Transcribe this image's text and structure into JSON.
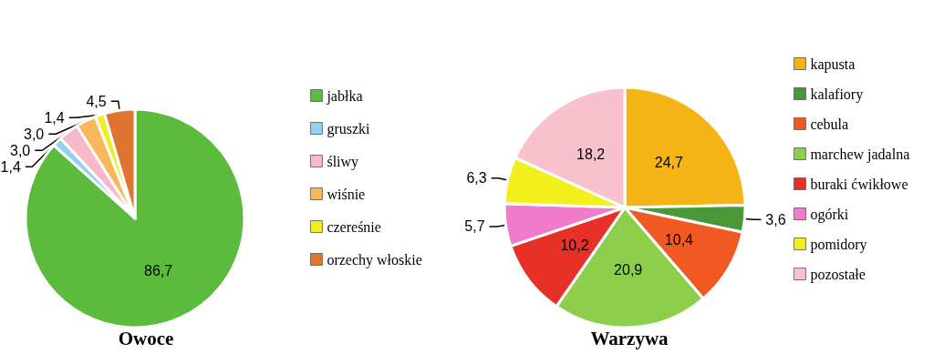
{
  "chart_data": [
    {
      "type": "pie",
      "title": "Owoce",
      "categories": [
        "jabłka",
        "gruszki",
        "śliwy",
        "wiśnie",
        "czereśnie",
        "orzechy włoskie"
      ],
      "values": [
        86.7,
        1.4,
        3.0,
        3.0,
        1.4,
        4.5
      ],
      "colors": [
        "#5cbb3c",
        "#92d2ee",
        "#f7b9c9",
        "#f8b75a",
        "#eeee22",
        "#e07530"
      ],
      "value_labels": [
        "86,7",
        "1,4",
        "3,0",
        "3,0",
        "1,4",
        "4,5"
      ],
      "legend": "right"
    },
    {
      "type": "pie",
      "title": "Warzywa",
      "categories": [
        "kapusta",
        "kalafiory",
        "cebula",
        "marchew jadalna",
        "buraki ćwikłowe",
        "ogórki",
        "pomidory",
        "pozostałe"
      ],
      "values": [
        24.7,
        3.6,
        10.4,
        20.9,
        10.2,
        5.7,
        6.3,
        18.2
      ],
      "colors": [
        "#f5b415",
        "#4b983a",
        "#f05a22",
        "#8dcf4a",
        "#e63028",
        "#f17bcb",
        "#f2f01c",
        "#f8c1cd"
      ],
      "value_labels": [
        "24,7",
        "3,6",
        "10,4",
        "20,9",
        "10,2",
        "5,7",
        "6,3",
        "18,2"
      ],
      "legend": "right"
    }
  ]
}
